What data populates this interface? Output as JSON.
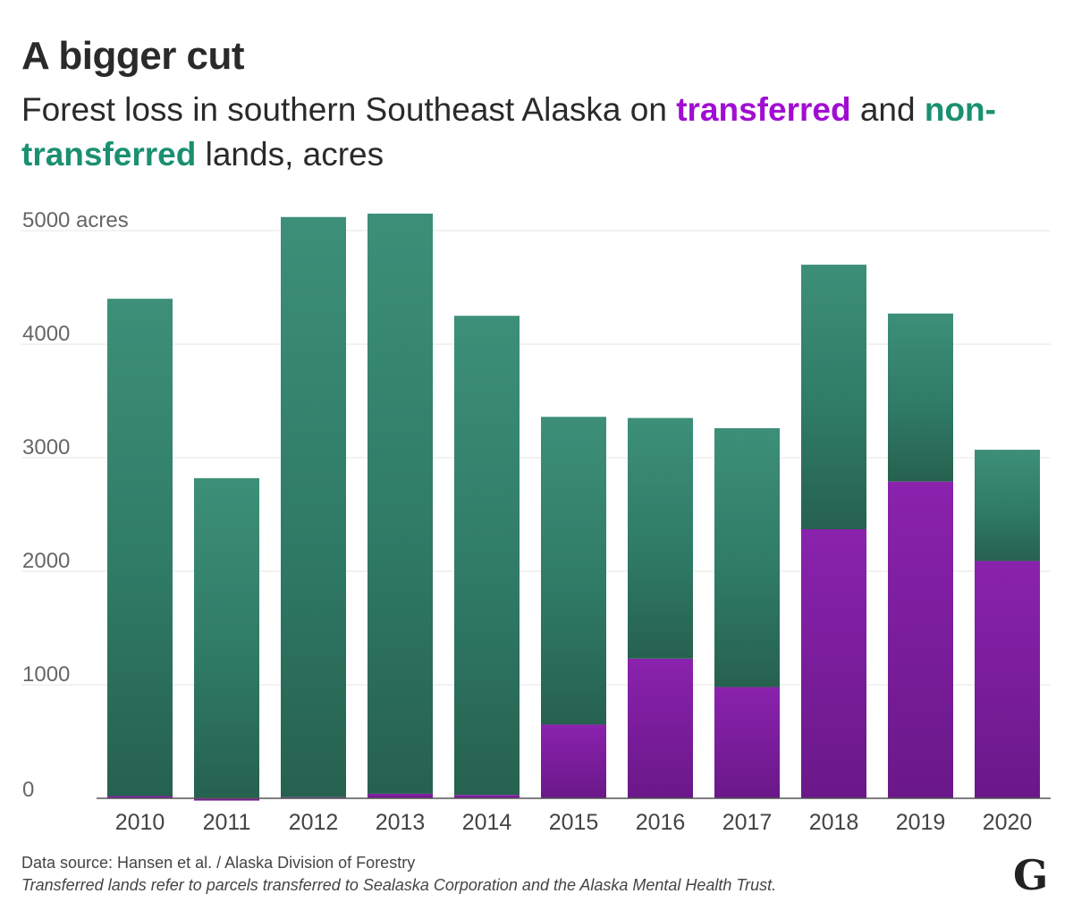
{
  "header": {
    "title": "A bigger cut",
    "subtitle_part1": "Forest loss in southern Southeast Alaska on ",
    "subtitle_transferred": "transferred",
    "subtitle_part2": " and ",
    "subtitle_non": "non-transferred",
    "subtitle_part3": " lands, acres"
  },
  "footer": {
    "source": "Data source: Hansen et al. / Alaska Division of Forestry",
    "note": "Transferred lands refer to parcels transferred to Sealaska Corporation and the Alaska Mental Health Trust.",
    "logo": "G"
  },
  "colors": {
    "transferred": "#7a1a9e",
    "non_transferred": "#2f7d68",
    "transferred_label": "#a10dd2",
    "non_transferred_label": "#1a9070"
  },
  "chart_data": {
    "type": "bar",
    "stacked": true,
    "categories": [
      "2010",
      "2011",
      "2012",
      "2013",
      "2014",
      "2015",
      "2016",
      "2017",
      "2018",
      "2019",
      "2020"
    ],
    "series": [
      {
        "name": "transferred",
        "values": [
          20,
          -20,
          10,
          40,
          30,
          650,
          1230,
          980,
          2370,
          2790,
          2090
        ]
      },
      {
        "name": "non-transferred",
        "values": [
          4380,
          2820,
          5110,
          5110,
          4220,
          2710,
          2120,
          2280,
          2330,
          1480,
          980
        ]
      }
    ],
    "totals": [
      4400,
      2800,
      5120,
      5150,
      4250,
      3360,
      3350,
      3260,
      4700,
      4270,
      3070
    ],
    "ylim": [
      0,
      5000
    ],
    "yticks": [
      0,
      1000,
      2000,
      3000,
      4000,
      5000
    ],
    "ytick_labels": [
      "0",
      "1000",
      "2000",
      "3000",
      "4000",
      "5000 acres"
    ],
    "grid": true,
    "legend": "in subtitle"
  }
}
